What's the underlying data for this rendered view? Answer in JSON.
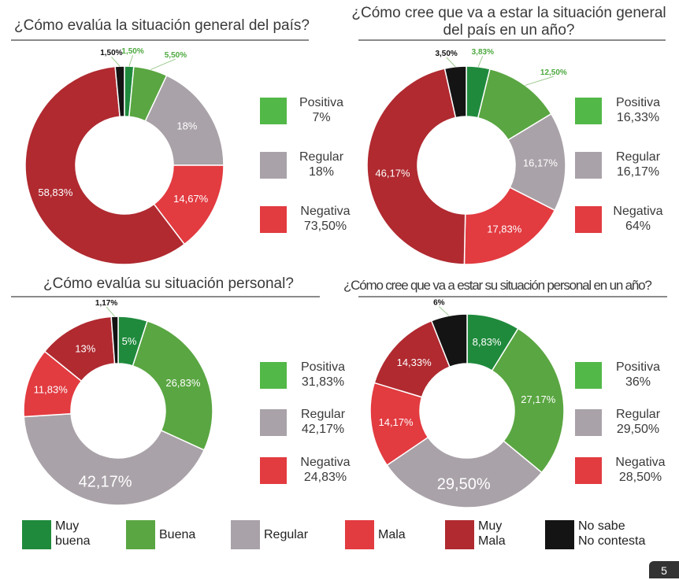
{
  "colors": {
    "muy_buena": "#1f8a3c",
    "buena": "#5aa642",
    "regular": "#a9a2a8",
    "mala": "#e23b40",
    "muy_mala": "#b02a30",
    "no_sabe": "#141414"
  },
  "chart_data": [
    {
      "type": "pie",
      "title": "¿Cómo evalúa la situación general del país?",
      "slices": [
        {
          "category": "Muy buena",
          "value": 1.5,
          "label": "1,50%"
        },
        {
          "category": "Buena",
          "value": 5.5,
          "label": "5,50%"
        },
        {
          "category": "Regular",
          "value": 18,
          "label": "18%"
        },
        {
          "category": "Mala",
          "value": 14.67,
          "label": "14,67%"
        },
        {
          "category": "Muy Mala",
          "value": 58.83,
          "label": "58,83%"
        },
        {
          "category": "No sabe No contesta",
          "value": 1.5,
          "label": "1,50%"
        }
      ],
      "summary": [
        {
          "label": "Positiva",
          "value": "7%"
        },
        {
          "label": "Regular",
          "value": "18%"
        },
        {
          "label": "Negativa",
          "value": "73,50%"
        }
      ]
    },
    {
      "type": "pie",
      "title": "¿Cómo cree que va a estar la situación general del país en un año?",
      "slices": [
        {
          "category": "Muy buena",
          "value": 3.83,
          "label": "3,83%"
        },
        {
          "category": "Buena",
          "value": 12.5,
          "label": "12,50%"
        },
        {
          "category": "Regular",
          "value": 16.17,
          "label": "16,17%"
        },
        {
          "category": "Mala",
          "value": 17.83,
          "label": "17,83%"
        },
        {
          "category": "Muy Mala",
          "value": 46.17,
          "label": "46,17%"
        },
        {
          "category": "No sabe No contesta",
          "value": 3.5,
          "label": "3,50%"
        }
      ],
      "summary": [
        {
          "label": "Positiva",
          "value": "16,33%"
        },
        {
          "label": "Regular",
          "value": "16,17%"
        },
        {
          "label": "Negativa",
          "value": "64%"
        }
      ]
    },
    {
      "type": "pie",
      "title": "¿Cómo evalúa su situación personal?",
      "slices": [
        {
          "category": "Muy buena",
          "value": 5,
          "label": "5%"
        },
        {
          "category": "Buena",
          "value": 26.83,
          "label": "26,83%"
        },
        {
          "category": "Regular",
          "value": 42.17,
          "label": "42,17%"
        },
        {
          "category": "Mala",
          "value": 11.83,
          "label": "11,83%"
        },
        {
          "category": "Muy Mala",
          "value": 13,
          "label": "13%"
        },
        {
          "category": "No sabe No contesta",
          "value": 1.17,
          "label": "1,17%"
        }
      ],
      "summary": [
        {
          "label": "Positiva",
          "value": "31,83%"
        },
        {
          "label": "Regular",
          "value": "42,17%"
        },
        {
          "label": "Negativa",
          "value": "24,83%"
        }
      ]
    },
    {
      "type": "pie",
      "title": "¿Cómo cree que va a estar su situación personal en un año?",
      "slices": [
        {
          "category": "Muy buena",
          "value": 8.83,
          "label": "8,83%"
        },
        {
          "category": "Buena",
          "value": 27.17,
          "label": "27,17%"
        },
        {
          "category": "Regular",
          "value": 29.5,
          "label": "29,50%"
        },
        {
          "category": "Mala",
          "value": 14.17,
          "label": "14,17%"
        },
        {
          "category": "Muy Mala",
          "value": 14.33,
          "label": "14,33%"
        },
        {
          "category": "No sabe No contesta",
          "value": 6,
          "label": "6%"
        }
      ],
      "summary": [
        {
          "label": "Positiva",
          "value": "36%"
        },
        {
          "label": "Regular",
          "value": "29,50%"
        },
        {
          "label": "Negativa",
          "value": "28,50%"
        }
      ]
    }
  ],
  "legend": {
    "muy_buena": [
      "Muy",
      "buena"
    ],
    "buena": "Buena",
    "regular": "Regular",
    "mala": "Mala",
    "muy_mala": [
      "Muy",
      "Mala"
    ],
    "no_sabe": [
      "No sabe",
      "No contesta"
    ]
  },
  "page_number": "5"
}
